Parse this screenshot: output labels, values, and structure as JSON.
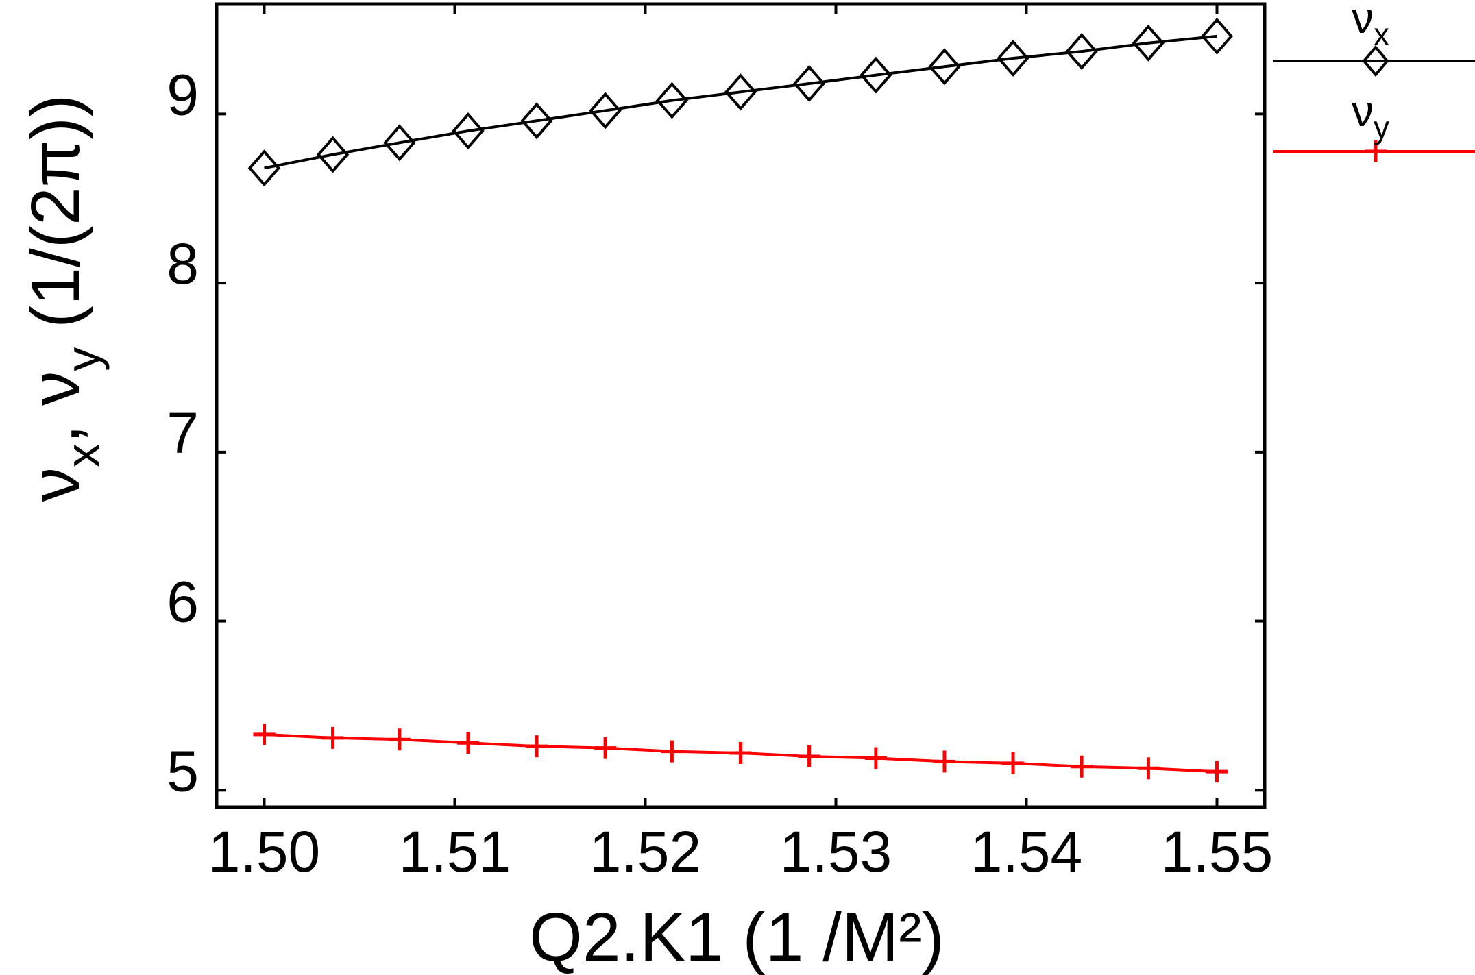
{
  "chart_data": {
    "type": "line",
    "title": "",
    "xlabel": "Q2.K1  (1 /M²)",
    "ylabel": "ν_x, ν_y  (1/(2π))",
    "ylabel_parts": [
      {
        "text": "ν",
        "sub": false
      },
      {
        "text": "x",
        "sub": true
      },
      {
        "text": ",  ",
        "sub": false
      },
      {
        "text": "ν",
        "sub": false
      },
      {
        "text": "y",
        "sub": true
      },
      {
        "text": "  (1/(2π))",
        "sub": false
      }
    ],
    "xlim": [
      1.4975,
      1.5525
    ],
    "ylim": [
      4.9,
      9.65
    ],
    "grid": false,
    "legend_position": "outside-right-top",
    "x_tick_values": [
      1.5,
      1.51,
      1.52,
      1.53,
      1.54,
      1.55
    ],
    "x_tick_labels": [
      "1.50",
      "1.51",
      "1.52",
      "1.53",
      "1.54",
      "1.55"
    ],
    "y_tick_values": [
      5,
      6,
      7,
      8,
      9
    ],
    "y_tick_labels": [
      "5",
      "6",
      "7",
      "8",
      "9"
    ],
    "x": [
      1.5,
      1.5036,
      1.5071,
      1.5107,
      1.5143,
      1.5179,
      1.5214,
      1.525,
      1.5286,
      1.5321,
      1.5357,
      1.5393,
      1.5429,
      1.5464,
      1.55
    ],
    "series": [
      {
        "name": "ν_x",
        "name_parts": [
          {
            "text": "ν",
            "sub": false
          },
          {
            "text": "x",
            "sub": true
          }
        ],
        "color": "#000000",
        "marker": "diamond",
        "values": [
          8.68,
          8.76,
          8.83,
          8.9,
          8.96,
          9.02,
          9.08,
          9.13,
          9.18,
          9.23,
          9.28,
          9.33,
          9.37,
          9.42,
          9.46
        ]
      },
      {
        "name": "ν_y",
        "name_parts": [
          {
            "text": "ν",
            "sub": false
          },
          {
            "text": "y",
            "sub": true
          }
        ],
        "color": "#ff0000",
        "marker": "plus",
        "values": [
          5.33,
          5.31,
          5.3,
          5.28,
          5.26,
          5.25,
          5.23,
          5.22,
          5.2,
          5.19,
          5.17,
          5.16,
          5.14,
          5.13,
          5.11
        ]
      }
    ]
  }
}
